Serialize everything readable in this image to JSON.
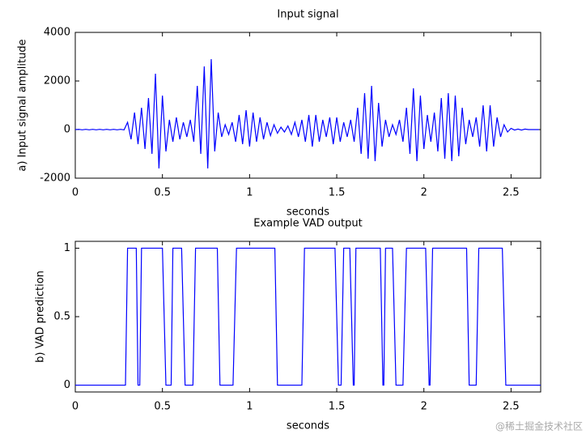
{
  "chart_data": [
    {
      "type": "line",
      "title": "Input signal",
      "xlabel": "seconds",
      "ylabel": "a) Input signal amplitude",
      "color": "#0000ff",
      "xlim": [
        0,
        2.67
      ],
      "ylim": [
        -2000,
        4000
      ],
      "xticks": [
        0,
        0.5,
        1,
        1.5,
        2,
        2.5
      ],
      "yticks": [
        -2000,
        0,
        2000,
        4000
      ],
      "grid": false,
      "x": [
        0,
        0.02,
        0.04,
        0.06,
        0.08,
        0.1,
        0.12,
        0.14,
        0.16,
        0.18,
        0.2,
        0.22,
        0.24,
        0.26,
        0.28,
        0.3,
        0.32,
        0.34,
        0.36,
        0.38,
        0.4,
        0.42,
        0.44,
        0.46,
        0.48,
        0.5,
        0.52,
        0.54,
        0.56,
        0.58,
        0.6,
        0.62,
        0.64,
        0.66,
        0.68,
        0.7,
        0.72,
        0.74,
        0.76,
        0.78,
        0.8,
        0.82,
        0.84,
        0.86,
        0.88,
        0.9,
        0.92,
        0.94,
        0.96,
        0.98,
        1,
        1.02,
        1.04,
        1.06,
        1.08,
        1.1,
        1.12,
        1.14,
        1.16,
        1.18,
        1.2,
        1.22,
        1.24,
        1.26,
        1.28,
        1.3,
        1.32,
        1.34,
        1.36,
        1.38,
        1.4,
        1.42,
        1.44,
        1.46,
        1.48,
        1.5,
        1.52,
        1.54,
        1.56,
        1.58,
        1.6,
        1.62,
        1.64,
        1.66,
        1.68,
        1.7,
        1.72,
        1.74,
        1.76,
        1.78,
        1.8,
        1.82,
        1.84,
        1.86,
        1.88,
        1.9,
        1.92,
        1.94,
        1.96,
        1.98,
        2,
        2.02,
        2.04,
        2.06,
        2.08,
        2.1,
        2.12,
        2.14,
        2.16,
        2.18,
        2.2,
        2.22,
        2.24,
        2.26,
        2.28,
        2.3,
        2.32,
        2.34,
        2.36,
        2.38,
        2.4,
        2.42,
        2.44,
        2.46,
        2.48,
        2.5,
        2.52,
        2.54,
        2.56,
        2.58,
        2.6,
        2.62,
        2.64,
        2.66
      ],
      "values": [
        0,
        10,
        -10,
        10,
        -10,
        10,
        -10,
        10,
        -10,
        10,
        -10,
        10,
        -10,
        10,
        -10,
        300,
        -400,
        700,
        -600,
        900,
        -800,
        1300,
        -1000,
        2300,
        -1600,
        1400,
        -900,
        400,
        -500,
        500,
        -400,
        300,
        -300,
        400,
        -500,
        1800,
        -1000,
        2600,
        -1600,
        2900,
        -900,
        700,
        -300,
        200,
        -200,
        300,
        -500,
        600,
        -600,
        800,
        -700,
        700,
        -500,
        500,
        -400,
        300,
        -250,
        200,
        -150,
        100,
        -100,
        150,
        -200,
        300,
        -300,
        400,
        -500,
        600,
        -700,
        600,
        -500,
        400,
        -300,
        500,
        -600,
        500,
        -500,
        300,
        -300,
        400,
        -500,
        900,
        -1000,
        1500,
        -1200,
        1800,
        -1300,
        1100,
        -700,
        400,
        -300,
        200,
        -200,
        400,
        -500,
        900,
        -1000,
        1700,
        -1300,
        1400,
        -800,
        600,
        -500,
        700,
        -900,
        1300,
        -1200,
        1500,
        -1300,
        1400,
        -1100,
        900,
        -600,
        400,
        -300,
        500,
        -700,
        1000,
        -900,
        1000,
        -700,
        500,
        -300,
        200,
        -100,
        50,
        -20,
        20,
        -20,
        20,
        0,
        0,
        0,
        0
      ]
    },
    {
      "type": "line",
      "title": "Example VAD output",
      "xlabel": "seconds",
      "ylabel": "b) VAD prediction",
      "color": "#0000ff",
      "xlim": [
        0,
        2.67
      ],
      "ylim": [
        -0.05,
        1.05
      ],
      "xticks": [
        0,
        0.5,
        1,
        1.5,
        2,
        2.5
      ],
      "yticks": [
        0,
        0.5,
        1
      ],
      "grid": false,
      "x": [
        0,
        0.288,
        0.3,
        0.35,
        0.36,
        0.37,
        0.38,
        0.5,
        0.52,
        0.55,
        0.56,
        0.61,
        0.63,
        0.675,
        0.69,
        0.815,
        0.83,
        0.905,
        0.925,
        1.145,
        1.16,
        1.3,
        1.315,
        1.49,
        1.51,
        1.525,
        1.54,
        1.575,
        1.595,
        1.6,
        1.61,
        1.75,
        1.765,
        1.77,
        1.78,
        1.82,
        1.84,
        1.88,
        1.9,
        2.01,
        2.03,
        2.035,
        2.05,
        2.245,
        2.26,
        2.3,
        2.315,
        2.45,
        2.47,
        2.67
      ],
      "values": [
        0,
        0,
        1,
        1,
        0,
        0,
        1,
        1,
        0,
        0,
        1,
        1,
        0,
        0,
        1,
        1,
        0,
        0,
        1,
        1,
        0,
        0,
        1,
        1,
        0,
        0,
        1,
        1,
        0,
        0,
        1,
        1,
        0,
        0,
        1,
        1,
        0,
        0,
        1,
        1,
        0,
        0,
        1,
        1,
        0,
        0,
        1,
        1,
        0,
        0
      ]
    }
  ],
  "watermark": "@稀土掘金技术社区"
}
